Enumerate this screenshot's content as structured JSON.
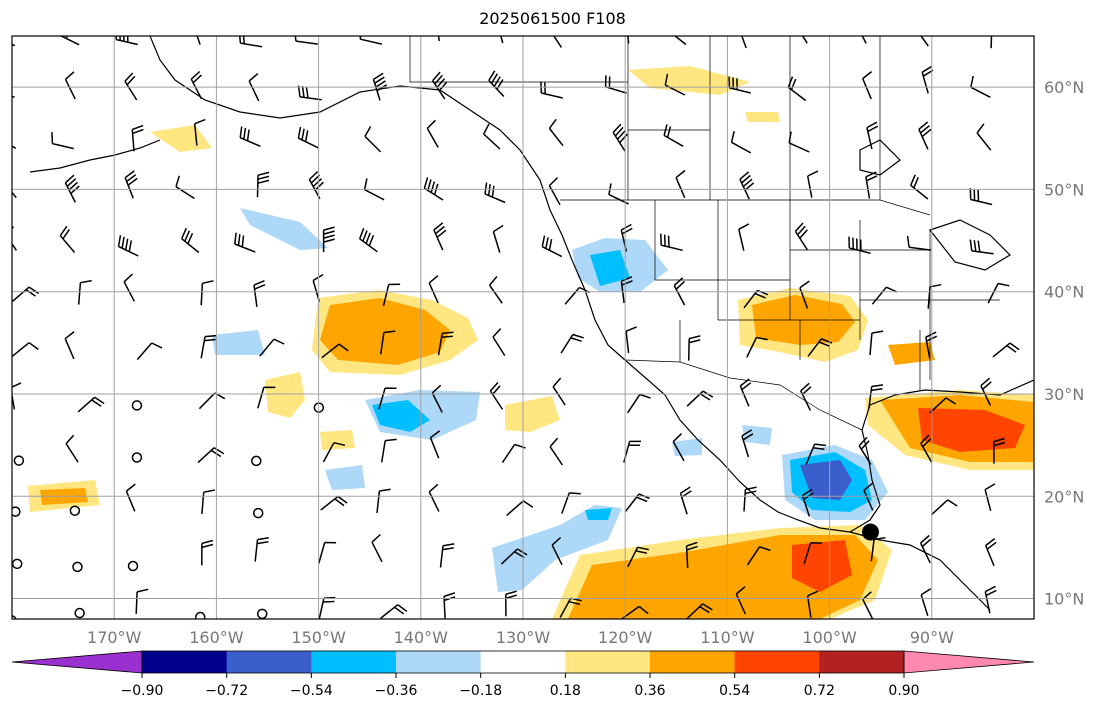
{
  "title": "2025061500 F108",
  "map": {
    "lon_range": [
      -180,
      -80
    ],
    "lat_range": [
      8,
      65
    ],
    "lon_gridlines": [
      -170,
      -160,
      -150,
      -140,
      -130,
      -120,
      -110,
      -100,
      -90
    ],
    "lat_gridlines": [
      10,
      20,
      30,
      40,
      50,
      60
    ],
    "lon_labels": [
      "170°W",
      "160°W",
      "150°W",
      "140°W",
      "130°W",
      "120°W",
      "110°W",
      "100°W",
      "90°W"
    ],
    "lat_labels": [
      "10°N",
      "20°N",
      "30°N",
      "40°N",
      "50°N",
      "60°N"
    ],
    "marker": {
      "name": "storm-center",
      "lon": -96,
      "lat": 16.5
    }
  },
  "colorbar": {
    "colors": [
      "#9b30d0",
      "#00008b",
      "#3a5fcd",
      "#00bfff",
      "#add8f7",
      "#ffffff",
      "#ffe680",
      "#ffa500",
      "#ff4500",
      "#b22222",
      "#ff88b0"
    ],
    "tick_labels": [
      "−0.90",
      "−0.72",
      "−0.54",
      "−0.36",
      "−0.18",
      "0.18",
      "0.36",
      "0.54",
      "0.72",
      "0.90"
    ]
  }
}
